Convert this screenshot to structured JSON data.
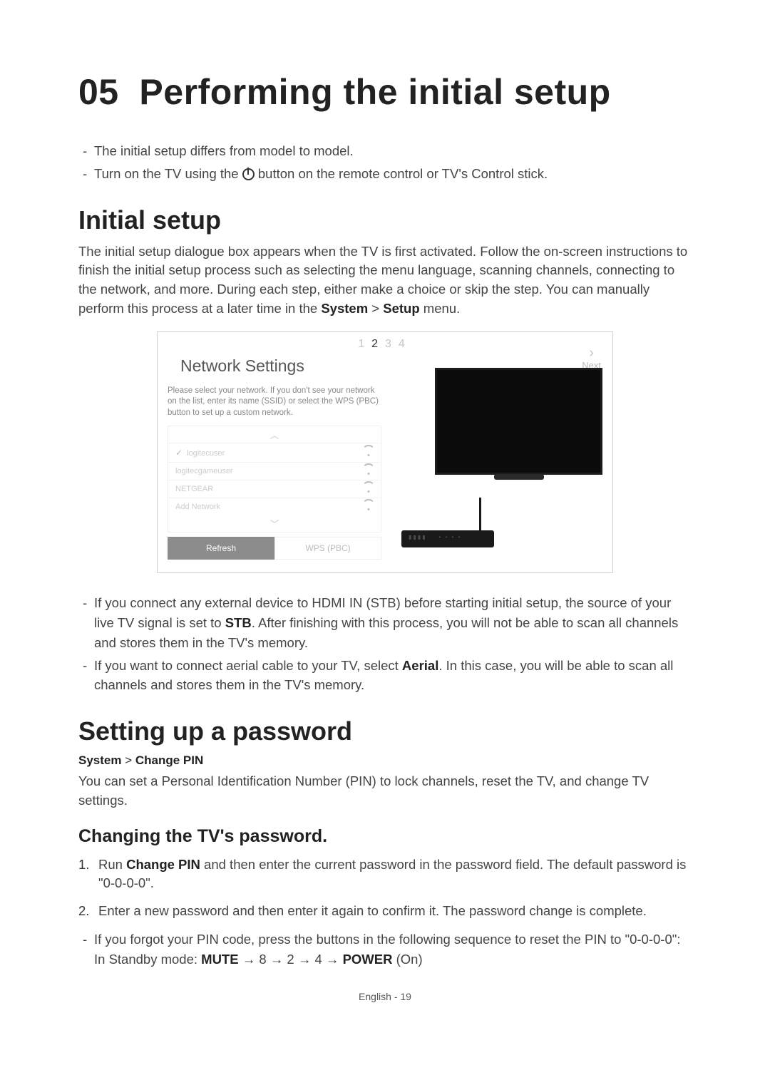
{
  "chapter": {
    "number": "05",
    "title": "Performing the initial setup"
  },
  "intro_bullets": [
    "The initial setup differs from model to model.",
    "Turn on the TV using the ⏻ button on the remote control or TV's Control stick."
  ],
  "initial_setup": {
    "heading": "Initial setup",
    "para": "The initial setup dialogue box appears when the TV is first activated. Follow the on-screen instructions to finish the initial setup process such as selecting the menu language, scanning channels, connecting to the network, and more. During each step, either make a choice or skip the step. You can manually perform this process at a later time in the ",
    "para_bold1": "System",
    "para_mid": " > ",
    "para_bold2": "Setup",
    "para_end": " menu."
  },
  "ui": {
    "steps": [
      "1",
      "2",
      "3",
      "4"
    ],
    "next_label": "Next",
    "panel_title": "Network Settings",
    "desc": "Please select your network. If you don't see your network on the list, enter its name (SSID) or select the WPS (PBC) button to set up a custom network.",
    "networks": [
      {
        "name": "logitecuser",
        "selected": true,
        "secure": true
      },
      {
        "name": "logitecgameuser",
        "selected": false,
        "secure": false
      },
      {
        "name": "NETGEAR",
        "selected": false,
        "secure": false
      },
      {
        "name": "Add Network",
        "selected": false,
        "secure": false
      }
    ],
    "btn_refresh": "Refresh",
    "btn_wps": "WPS (PBC)"
  },
  "post_bullets": {
    "b1_a": "If you connect any external device to HDMI IN (STB) before starting initial setup, the source of your live TV signal is set to ",
    "b1_bold": "STB",
    "b1_b": ". After finishing with this process, you will not be able to scan all channels and stores them in the TV's memory.",
    "b2_a": "If you want to connect aerial cable to your TV, select ",
    "b2_bold": "Aerial",
    "b2_b": ". In this case, you will be able to scan all channels and stores them in the TV's memory."
  },
  "password": {
    "heading": "Setting up a password",
    "path_a": "System",
    "path_sep": " > ",
    "path_b": "Change PIN",
    "para": "You can set a Personal Identification Number (PIN) to lock channels, reset the TV, and change TV settings.",
    "sub_heading": "Changing the TV's password.",
    "steps": {
      "s1_a": "Run ",
      "s1_bold": "Change PIN",
      "s1_b": " and then enter the current password in the password field. The default password is \"0-0-0-0\".",
      "s2": "Enter a new password and then enter it again to confirm it. The password change is complete."
    },
    "forgot_a": "If you forgot your PIN code, press the buttons in the following sequence to reset the PIN to \"0-0-0-0\":",
    "forgot_b_pre": "In Standby mode: ",
    "forgot_seq_mute": "MUTE",
    "forgot_seq_mid": " → 8 → 2 → 4 → ",
    "forgot_seq_power": "POWER",
    "forgot_seq_end": " (On)"
  },
  "footer": "English - 19",
  "colors": {
    "text": "#333333",
    "muted": "#bbbbbb",
    "panel_border": "#d0d0d0",
    "btn_primary_bg": "#8c8c8c"
  }
}
